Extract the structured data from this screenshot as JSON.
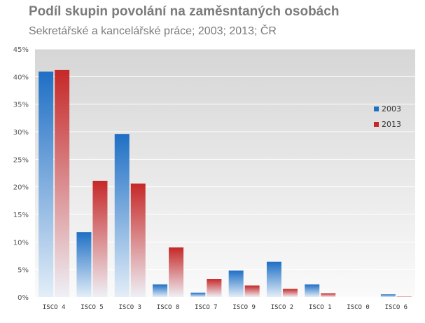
{
  "chart_data": {
    "type": "bar",
    "title": "Podíl skupin povolání na zaměsntaných osobách",
    "subtitle": "Sekretářské a kancelářské práce; 2003; 2013; ČR",
    "categories": [
      "ISCO 4",
      "ISCO 5",
      "ISCO 3",
      "ISCO 8",
      "ISCO 7",
      "ISCO 9",
      "ISCO 2",
      "ISCO 1",
      "ISCO 0",
      "ISCO 6"
    ],
    "series": [
      {
        "name": "2003",
        "values": [
          40.9,
          11.8,
          29.6,
          2.3,
          0.8,
          4.8,
          6.4,
          2.3,
          0.0,
          0.5
        ],
        "color": "#1f6fc5"
      },
      {
        "name": "2013",
        "values": [
          41.2,
          21.1,
          20.6,
          9.0,
          3.3,
          2.1,
          1.5,
          0.7,
          0.0,
          0.1
        ],
        "color": "#c62828"
      }
    ],
    "yticks": [
      "0%",
      "5%",
      "10%",
      "15%",
      "20%",
      "25%",
      "30%",
      "35%",
      "40%",
      "45%"
    ],
    "ylim": [
      0,
      45
    ],
    "grid": true,
    "legend_position": "right"
  }
}
